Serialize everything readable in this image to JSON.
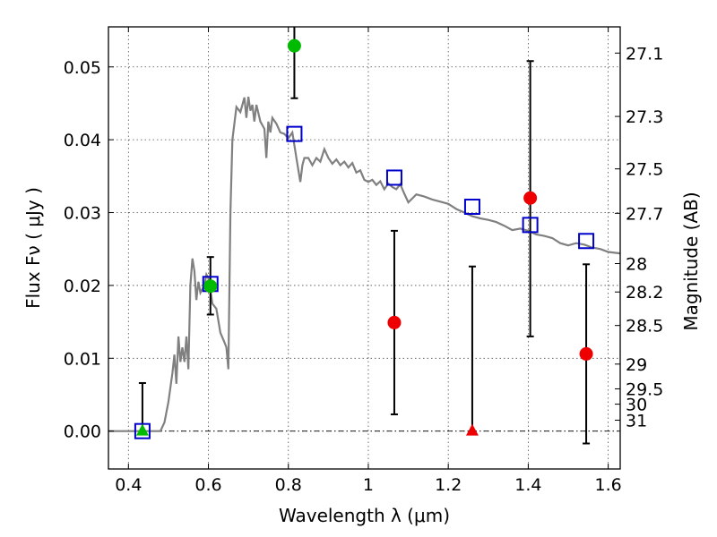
{
  "chart_data": {
    "type": "scatter",
    "xlabel": "Wavelength  λ (μm)",
    "ylabel": "Flux  Fν  ( μJy )",
    "y2label": "Magnitude (AB)",
    "xlim": [
      0.35,
      1.63
    ],
    "ylim": [
      -0.0052,
      0.0555
    ],
    "grid": true,
    "x_ticks": [
      0.4,
      0.6,
      0.8,
      1.0,
      1.2,
      1.4,
      1.6
    ],
    "x_tick_labels": [
      "0.4",
      "0.6",
      "0.8",
      "1",
      "1.2",
      "1.4",
      "1.6"
    ],
    "y_ticks": [
      0.0,
      0.01,
      0.02,
      0.03,
      0.04,
      0.05
    ],
    "y_tick_labels": [
      "0.00",
      "0.01",
      "0.02",
      "0.03",
      "0.04",
      "0.05"
    ],
    "magnitude_ticks": [
      {
        "label": "27.1",
        "flux": 0.0519
      },
      {
        "label": "27.3",
        "flux": 0.0432
      },
      {
        "label": "27.5",
        "flux": 0.036
      },
      {
        "label": "27.7",
        "flux": 0.0299
      },
      {
        "label": "28",
        "flux": 0.023
      },
      {
        "label": "28.2",
        "flux": 0.0191
      },
      {
        "label": "28.5",
        "flux": 0.0145
      },
      {
        "label": "29",
        "flux": 0.0092
      },
      {
        "label": "29.5",
        "flux": 0.0058
      },
      {
        "label": "30",
        "flux": 0.0037
      },
      {
        "label": "31",
        "flux": 0.0015
      }
    ],
    "model_sed": {
      "color": "#808080",
      "x": [
        0.35,
        0.48,
        0.49,
        0.5,
        0.51,
        0.515,
        0.52,
        0.525,
        0.53,
        0.535,
        0.54,
        0.545,
        0.55,
        0.555,
        0.56,
        0.565,
        0.57,
        0.575,
        0.58,
        0.585,
        0.59,
        0.595,
        0.6,
        0.605,
        0.61,
        0.62,
        0.63,
        0.64,
        0.645,
        0.65,
        0.655,
        0.66,
        0.67,
        0.68,
        0.69,
        0.695,
        0.7,
        0.705,
        0.71,
        0.715,
        0.72,
        0.73,
        0.74,
        0.745,
        0.75,
        0.755,
        0.76,
        0.77,
        0.78,
        0.79,
        0.8,
        0.81,
        0.82,
        0.83,
        0.835,
        0.84,
        0.85,
        0.86,
        0.87,
        0.88,
        0.89,
        0.9,
        0.91,
        0.92,
        0.93,
        0.94,
        0.95,
        0.96,
        0.97,
        0.98,
        0.99,
        1.0,
        1.01,
        1.02,
        1.03,
        1.04,
        1.05,
        1.06,
        1.07,
        1.08,
        1.09,
        1.1,
        1.12,
        1.14,
        1.16,
        1.18,
        1.2,
        1.22,
        1.24,
        1.26,
        1.28,
        1.3,
        1.32,
        1.34,
        1.36,
        1.38,
        1.4,
        1.42,
        1.44,
        1.46,
        1.48,
        1.5,
        1.52,
        1.54,
        1.56,
        1.58,
        1.6,
        1.63
      ],
      "y": [
        0.0,
        0.0,
        0.0012,
        0.004,
        0.008,
        0.0105,
        0.0065,
        0.013,
        0.0095,
        0.0115,
        0.0095,
        0.013,
        0.0085,
        0.02,
        0.0237,
        0.022,
        0.018,
        0.0205,
        0.019,
        0.0195,
        0.02,
        0.0215,
        0.021,
        0.0193,
        0.0175,
        0.0168,
        0.0135,
        0.0122,
        0.0115,
        0.0085,
        0.03,
        0.04,
        0.0445,
        0.0438,
        0.0458,
        0.043,
        0.0459,
        0.044,
        0.0448,
        0.0425,
        0.0448,
        0.0425,
        0.0415,
        0.0375,
        0.0425,
        0.041,
        0.043,
        0.0422,
        0.041,
        0.0408,
        0.0402,
        0.041,
        0.0375,
        0.0342,
        0.0365,
        0.0375,
        0.0375,
        0.0365,
        0.0375,
        0.037,
        0.0387,
        0.0375,
        0.0367,
        0.0373,
        0.0365,
        0.037,
        0.0362,
        0.0368,
        0.0355,
        0.0358,
        0.0345,
        0.0342,
        0.0345,
        0.0338,
        0.0343,
        0.0332,
        0.034,
        0.0335,
        0.0332,
        0.0339,
        0.0326,
        0.0314,
        0.0325,
        0.0322,
        0.0318,
        0.0315,
        0.0312,
        0.0305,
        0.03,
        0.0295,
        0.0292,
        0.029,
        0.0287,
        0.0282,
        0.0276,
        0.0278,
        0.0275,
        0.027,
        0.0268,
        0.0265,
        0.0258,
        0.0255,
        0.0258,
        0.0256,
        0.0252,
        0.025,
        0.0246,
        0.0244
      ]
    },
    "model_photometry": {
      "color": "#0000cc",
      "x": [
        0.435,
        0.605,
        0.815,
        1.065,
        1.26,
        1.405,
        1.545
      ],
      "y": [
        0.0,
        0.0202,
        0.0408,
        0.0348,
        0.0308,
        0.0283,
        0.0261
      ]
    },
    "observed_detections": {
      "colors": {
        "hst": "#00bb00",
        "ir": "#ee0000"
      },
      "points": [
        {
          "x": 0.605,
          "y": 0.0199,
          "yerr_low": 0.016,
          "yerr_high": 0.0239,
          "color": "hst"
        },
        {
          "x": 0.815,
          "y": 0.0529,
          "yerr_low": 0.0457,
          "yerr_high": 0.0565,
          "color": "hst"
        },
        {
          "x": 1.065,
          "y": 0.0149,
          "yerr_low": 0.0023,
          "yerr_high": 0.0275,
          "color": "ir"
        },
        {
          "x": 1.405,
          "y": 0.032,
          "yerr_low": 0.013,
          "yerr_high": 0.0508,
          "color": "ir"
        },
        {
          "x": 1.545,
          "y": 0.0106,
          "yerr_low": -0.0017,
          "yerr_high": 0.0229,
          "color": "ir"
        }
      ]
    },
    "observed_limits": [
      {
        "x": 0.435,
        "y": 0.0,
        "yerr_low": 0.0,
        "yerr_high": 0.0066,
        "color": "hst"
      },
      {
        "x": 1.26,
        "y": 0.0,
        "yerr_low": 0.0,
        "yerr_high": 0.0226,
        "color": "ir"
      }
    ]
  }
}
